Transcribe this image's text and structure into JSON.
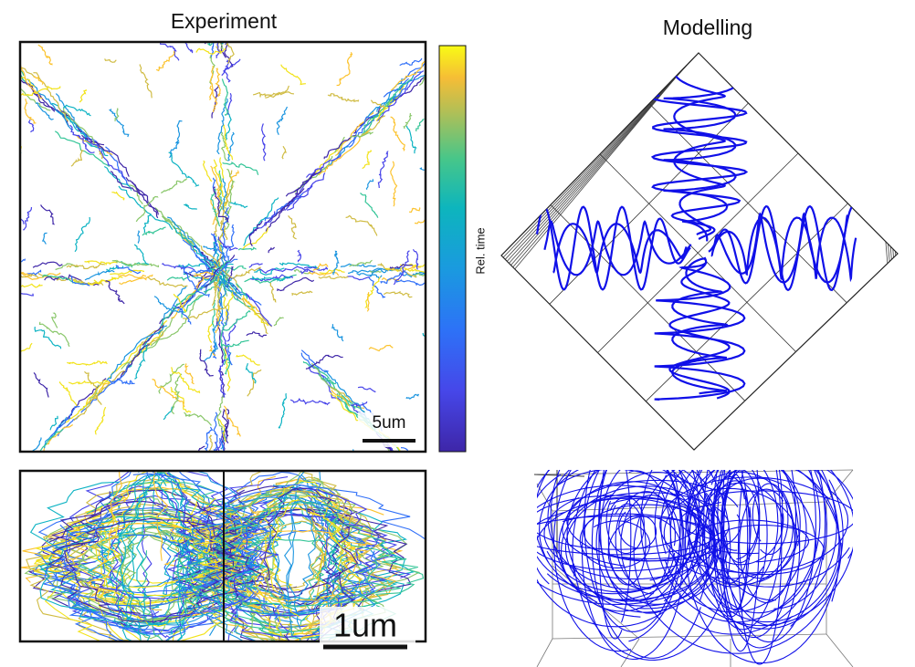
{
  "experiment": {
    "title": "Experiment",
    "colorbar_label": "Rel. time",
    "scale_top": "5um",
    "scale_bottom": "1um"
  },
  "modelling": {
    "title": "Modelling"
  }
}
